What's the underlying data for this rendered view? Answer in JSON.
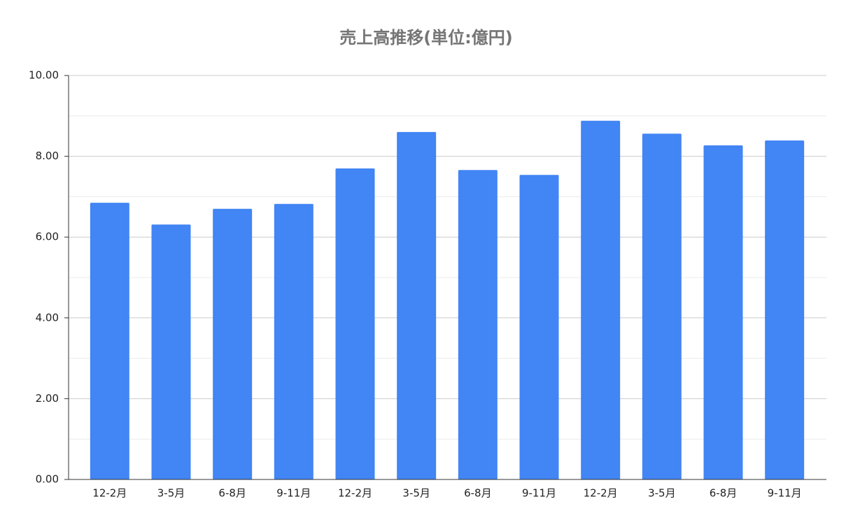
{
  "chart_data": {
    "type": "bar",
    "title": "売上高推移(単位:億円)",
    "categories": [
      "12-2月",
      "3-5月",
      "6-8月",
      "9-11月",
      "12-2月",
      "3-5月",
      "6-8月",
      "9-11月",
      "12-2月",
      "3-5月",
      "6-8月",
      "9-11月"
    ],
    "values": [
      6.85,
      6.31,
      6.7,
      6.82,
      7.7,
      8.6,
      7.66,
      7.54,
      8.88,
      8.56,
      8.27,
      8.39
    ],
    "color": "#4285f4",
    "ylim": [
      0,
      10
    ],
    "yticks": [
      {
        "value": 0,
        "label": "0.00"
      },
      {
        "value": 2,
        "label": "2.00"
      },
      {
        "value": 4,
        "label": "4.00"
      },
      {
        "value": 6,
        "label": "6.00"
      },
      {
        "value": 8,
        "label": "8.00"
      },
      {
        "value": 10,
        "label": "10.00"
      }
    ],
    "minor_yticks": [
      1,
      3,
      5,
      7,
      9
    ],
    "grid": true
  }
}
